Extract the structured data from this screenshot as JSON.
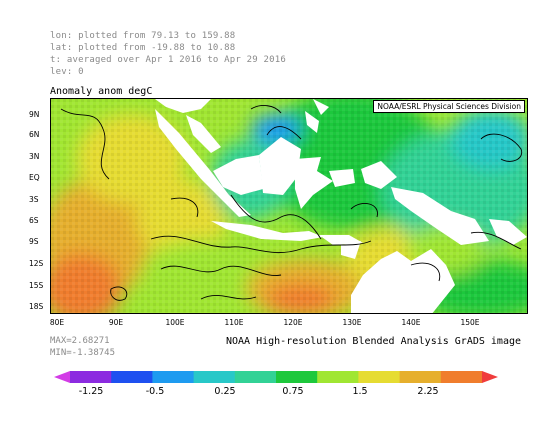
{
  "header": {
    "lon_line": "lon: plotted from 79.13 to 159.88",
    "lat_line": "lat: plotted from -19.88 to 10.88",
    "time_line": "t: averaged over Apr 1 2016 to Apr 29 2016",
    "lev_line": "lev: 0"
  },
  "map": {
    "title": "Anomaly anom degC",
    "credit": "NOAA/ESRL Physical Sciences Division",
    "lat_labels": [
      "9N",
      "6N",
      "3N",
      "EQ",
      "3S",
      "6S",
      "9S",
      "12S",
      "15S",
      "18S"
    ],
    "lon_labels": [
      "80E",
      "90E",
      "100E",
      "110E",
      "120E",
      "130E",
      "140E",
      "150E"
    ],
    "land_color": "#ffffff",
    "contour_color": "#000000"
  },
  "stats": {
    "max": "MAX=2.68271",
    "min": "MIN=-1.38745"
  },
  "caption": "NOAA High-resolution Blended Analysis GrADS image",
  "colorbar": {
    "colors": [
      "#d23ce6",
      "#8c2be0",
      "#1e50f0",
      "#1e9bf0",
      "#28c8c8",
      "#32d296",
      "#1ec83c",
      "#a0e632",
      "#e6dc32",
      "#e6af2d",
      "#f07d2d",
      "#f03c3c"
    ],
    "labels": [
      "-1.25",
      "-0.5",
      "0.25",
      "0.75",
      "1.5",
      "2.25"
    ]
  }
}
